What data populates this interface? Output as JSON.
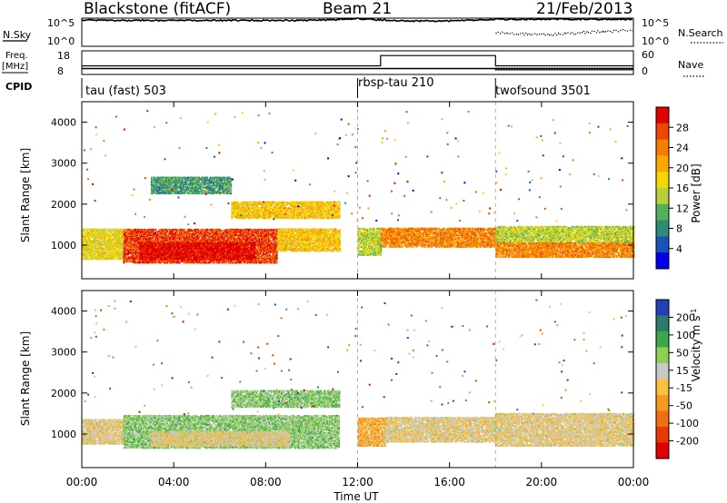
{
  "header": {
    "station": "Blackstone (fitACF)",
    "beam": "Beam 21",
    "date": "21/Feb/2013"
  },
  "noise_panel": {
    "left_label": "N.Sky",
    "left_ticks": [
      "10^5",
      "10^0"
    ],
    "right_label": "N.Search",
    "right_ticks": [
      "10^5",
      "10^0"
    ]
  },
  "freq_panel": {
    "left_label_top": "Freq.",
    "left_label_unit": "[MHz]",
    "left_ticks": [
      "18",
      "8"
    ],
    "right_label": "Nave",
    "right_ticks": [
      "60",
      "0"
    ]
  },
  "cpid": {
    "label": "CPID",
    "modes": [
      {
        "name": "tau (fast) 503",
        "start_hour": 0
      },
      {
        "name": "rbsp-tau 210",
        "start_hour": 12
      },
      {
        "name": "twofsound 3501",
        "start_hour": 18
      }
    ]
  },
  "x_axis": {
    "label": "Time UT",
    "ticks": [
      "00:00",
      "04:00",
      "08:00",
      "12:00",
      "16:00",
      "20:00",
      "00:00"
    ]
  },
  "power_panel": {
    "ylabel": "Slant Range [km]",
    "yticks": [
      "1000",
      "2000",
      "3000",
      "4000"
    ],
    "colorbar_title": "Power [dB]",
    "colorbar_ticks": [
      "4",
      "8",
      "12",
      "16",
      "20",
      "24",
      "28"
    ],
    "colors": [
      "#0000ee",
      "#1a52b8",
      "#2f8a78",
      "#52b05a",
      "#b6cf3a",
      "#f4d800",
      "#fca800",
      "#f57d00",
      "#ec4800",
      "#e00000"
    ]
  },
  "velocity_panel": {
    "ylabel": "Slant Range [km]",
    "yticks": [
      "1000",
      "2000",
      "3000",
      "4000"
    ],
    "colorbar_title": "Velocity",
    "colorbar_unit": "m s",
    "colorbar_unit_exp": "-1",
    "colorbar_ticks": [
      "200",
      "100",
      "50",
      "15",
      "-15",
      "-50",
      "-100",
      "-200"
    ],
    "colors": [
      "#2440b8",
      "#2e7a6a",
      "#3aa84a",
      "#8fd050",
      "#c8c8c8",
      "#f7c040",
      "#f39a20",
      "#f07010",
      "#e83a00",
      "#e00000"
    ]
  },
  "chart_data": [
    {
      "type": "line",
      "title": "N.Sky / N.Search noise",
      "x_unit": "hours UT",
      "log_scale": true,
      "ylim": [
        "10^0",
        "10^5"
      ],
      "series": [
        {
          "name": "N.Sky",
          "x": [
            0,
            2,
            4,
            6,
            8,
            10,
            12,
            14,
            16,
            18,
            20,
            22,
            24
          ],
          "values": [
            "10^4.7",
            "10^4.6",
            "10^4.6",
            "10^4.6",
            "10^4.6",
            "10^4.6",
            "10^4.9",
            "10^4.5",
            "10^4.5",
            "10^4.8",
            "10^4.8",
            "10^4.8",
            "10^4.8"
          ]
        },
        {
          "name": "N.Search",
          "x": [
            18,
            20,
            22,
            24
          ],
          "values": [
            "10^2.5",
            "10^2.0",
            "10^2.5",
            "10^2.8"
          ]
        }
      ]
    },
    {
      "type": "line",
      "title": "Freq. / Nave",
      "x_unit": "hours UT",
      "series": [
        {
          "name": "Freq. [MHz]",
          "x": [
            0,
            12,
            12,
            24
          ],
          "values": [
            10.5,
            10.5,
            10.5,
            10.5
          ]
        },
        {
          "name": "Nave",
          "x": [
            0,
            12,
            13,
            13,
            18,
            18,
            24
          ],
          "values": [
            22,
            22,
            22,
            48,
            48,
            22,
            22
          ]
        }
      ]
    },
    {
      "type": "heatmap",
      "title": "Power [dB]",
      "x_unit": "hours UT",
      "y_unit": "km",
      "xlim": [
        0,
        24
      ],
      "ylim": [
        180,
        4500
      ],
      "zlim": [
        0,
        30
      ],
      "regions": [
        {
          "t0": 0.0,
          "t1": 1.8,
          "r0": 650,
          "r1": 1400,
          "power": 16
        },
        {
          "t0": 1.8,
          "t1": 8.5,
          "r0": 560,
          "r1": 1400,
          "power": 26
        },
        {
          "t0": 2.5,
          "t1": 7.5,
          "r0": 650,
          "r1": 1050,
          "power": 29
        },
        {
          "t0": 8.5,
          "t1": 11.2,
          "r0": 850,
          "r1": 1400,
          "power": 18
        },
        {
          "t0": 6.5,
          "t1": 11.2,
          "r0": 1650,
          "r1": 2050,
          "power": 18
        },
        {
          "t0": 3.0,
          "t1": 6.5,
          "r0": 2250,
          "r1": 2650,
          "power": 9
        },
        {
          "t0": 12.0,
          "t1": 13.0,
          "r0": 750,
          "r1": 1400,
          "power": 14
        },
        {
          "t0": 13.0,
          "t1": 18.0,
          "r0": 950,
          "r1": 1400,
          "power": 22
        },
        {
          "t0": 18.0,
          "t1": 24.0,
          "r0": 1050,
          "r1": 1450,
          "power": 14
        },
        {
          "t0": 18.0,
          "t1": 24.0,
          "r0": 700,
          "r1": 1050,
          "power": 22
        }
      ]
    },
    {
      "type": "heatmap",
      "title": "Velocity [m s^-1]",
      "x_unit": "hours UT",
      "y_unit": "km",
      "xlim": [
        0,
        24
      ],
      "ylim": [
        180,
        4500
      ],
      "zlim": [
        -200,
        200
      ],
      "regions": [
        {
          "t0": 0.0,
          "t1": 1.8,
          "r0": 750,
          "r1": 1350,
          "velocity": 0
        },
        {
          "t0": 1.8,
          "t1": 11.2,
          "r0": 650,
          "r1": 1450,
          "velocity": -60
        },
        {
          "t0": 3.0,
          "t1": 9.0,
          "r0": 700,
          "r1": 1050,
          "velocity": 0
        },
        {
          "t0": 6.5,
          "t1": 11.2,
          "r0": 1650,
          "r1": 2050,
          "velocity": -60
        },
        {
          "t0": 12.0,
          "t1": 13.2,
          "r0": 700,
          "r1": 1400,
          "velocity": 40
        },
        {
          "t0": 13.2,
          "t1": 18.0,
          "r0": 800,
          "r1": 1400,
          "velocity": 0
        },
        {
          "t0": 18.0,
          "t1": 24.0,
          "r0": 700,
          "r1": 1500,
          "velocity": 0
        }
      ]
    }
  ]
}
